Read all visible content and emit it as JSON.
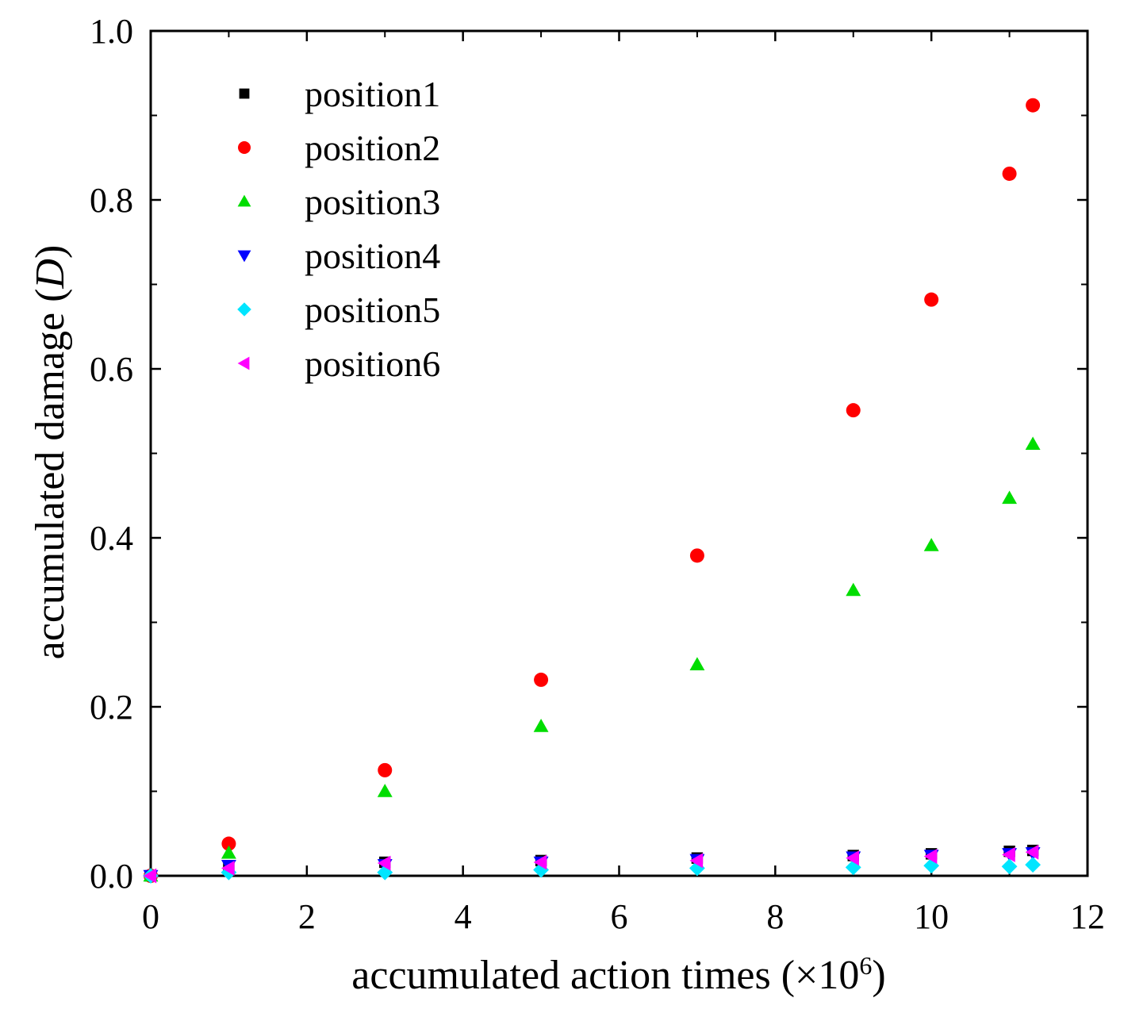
{
  "chart_data": {
    "type": "scatter",
    "title": "",
    "xlabel": "accumulated action times (×10",
    "xlabel_exponent": "6",
    "xlabel_close": ")",
    "ylabel": "accumulated damage (",
    "ylabel_symbol": "D",
    "ylabel_close": ")",
    "xlim": [
      0,
      12
    ],
    "ylim": [
      0,
      1.0
    ],
    "x_ticks": [
      0,
      2,
      4,
      6,
      8,
      10,
      12
    ],
    "x_tick_labels": [
      "0",
      "2",
      "4",
      "6",
      "8",
      "10",
      "12"
    ],
    "y_ticks": [
      0.0,
      0.2,
      0.4,
      0.6,
      0.8,
      1.0
    ],
    "y_tick_labels": [
      "0.0",
      "0.2",
      "0.4",
      "0.6",
      "0.8",
      "1.0"
    ],
    "x": [
      0,
      1,
      3,
      5,
      7,
      9,
      10,
      11,
      11.3
    ],
    "legend_position": "top-left",
    "series": [
      {
        "name": "position1",
        "marker": "square",
        "color": "#000000",
        "values": [
          0,
          0.012,
          0.016,
          0.018,
          0.021,
          0.024,
          0.026,
          0.029,
          0.03
        ]
      },
      {
        "name": "position2",
        "marker": "circle",
        "color": "#ff0000",
        "values": [
          0,
          0.038,
          0.125,
          0.232,
          0.379,
          0.551,
          0.682,
          0.831,
          0.912
        ]
      },
      {
        "name": "position3",
        "marker": "triangle-up",
        "color": "#00dd00",
        "values": [
          0,
          0.027,
          0.1,
          0.177,
          0.25,
          0.338,
          0.391,
          0.447,
          0.511
        ]
      },
      {
        "name": "position4",
        "marker": "triangle-down",
        "color": "#0000ff",
        "values": [
          0,
          0.012,
          0.013,
          0.016,
          0.019,
          0.022,
          0.024,
          0.026,
          0.027
        ]
      },
      {
        "name": "position5",
        "marker": "diamond",
        "color": "#00e5ff",
        "values": [
          0,
          0.004,
          0.004,
          0.007,
          0.009,
          0.01,
          0.012,
          0.011,
          0.013
        ]
      },
      {
        "name": "position6",
        "marker": "triangle-left",
        "color": "#ff00ff",
        "values": [
          0,
          0.009,
          0.015,
          0.016,
          0.018,
          0.021,
          0.023,
          0.025,
          0.028
        ]
      }
    ]
  }
}
